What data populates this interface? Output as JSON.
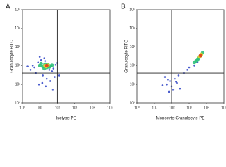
{
  "chart_data": [
    {
      "type": "scatter",
      "panel_label": "A",
      "xlabel": "Isotype PE",
      "ylabel": "Granulocyte FITC",
      "log": true,
      "xlim": [
        1,
        100000
      ],
      "ylim": [
        1,
        100000
      ],
      "xticks": [
        {
          "value": 1,
          "label": "10⁰"
        },
        {
          "value": 10,
          "label": "10¹"
        },
        {
          "value": 100,
          "label": "10²"
        },
        {
          "value": 1000,
          "label": "10³"
        },
        {
          "value": 10000,
          "label": "10⁴"
        },
        {
          "value": 100000,
          "label": "10⁵"
        }
      ],
      "yticks": [
        {
          "value": 1,
          "label": "10⁰"
        },
        {
          "value": 10,
          "label": "10¹"
        },
        {
          "value": 100,
          "label": "10²"
        },
        {
          "value": 1000,
          "label": "10³"
        },
        {
          "value": 10000,
          "label": "10⁴"
        },
        {
          "value": 100000,
          "label": "10⁵"
        }
      ],
      "quadrant": {
        "x": 100,
        "y": 40
      },
      "series": [
        {
          "color": "#2a3fc4",
          "x": [
            3,
            5,
            8,
            12,
            20,
            30,
            45,
            60,
            80,
            100,
            6,
            15,
            25,
            40,
            70,
            4,
            10,
            18,
            35,
            50,
            9,
            22,
            55,
            130,
            2,
            14
          ],
          "values": [
            60,
            80,
            150,
            200,
            180,
            120,
            90,
            70,
            110,
            140,
            40,
            30,
            20,
            15,
            25,
            100,
            300,
            250,
            60,
            50,
            10,
            8,
            5,
            30,
            90,
            12
          ]
        },
        {
          "color": "#2fc07a",
          "x": [
            10,
            15,
            20,
            25,
            30,
            40,
            12,
            18,
            35,
            50
          ],
          "values": [
            100,
            90,
            120,
            80,
            110,
            95,
            130,
            70,
            85,
            105
          ]
        },
        {
          "color": "#e6d22a",
          "x": [
            20,
            25,
            30,
            22
          ],
          "values": [
            100,
            95,
            105,
            90
          ]
        },
        {
          "color": "#e03a20",
          "x": [
            25
          ],
          "values": [
            100
          ]
        }
      ]
    },
    {
      "type": "scatter",
      "panel_label": "B",
      "xlabel": "Monocyte Granulocyte PE",
      "ylabel": "Granulocyte FITC",
      "log": true,
      "xlim": [
        1,
        100000
      ],
      "ylim": [
        1,
        100000
      ],
      "xticks": [
        {
          "value": 1,
          "label": "10⁰"
        },
        {
          "value": 10,
          "label": "10¹"
        },
        {
          "value": 100,
          "label": "10²"
        },
        {
          "value": 1000,
          "label": "10³"
        },
        {
          "value": 10000,
          "label": "10⁴"
        },
        {
          "value": 100000,
          "label": "10⁵"
        }
      ],
      "yticks": [
        {
          "value": 1,
          "label": "10⁰"
        },
        {
          "value": 10,
          "label": "10¹"
        },
        {
          "value": 100,
          "label": "10²"
        },
        {
          "value": 1000,
          "label": "10³"
        },
        {
          "value": 10000,
          "label": "10⁴"
        },
        {
          "value": 100000,
          "label": "10⁵"
        }
      ],
      "quadrant": {
        "x": 100,
        "y": 40
      },
      "series": [
        {
          "color": "#2a3fc4",
          "x": [
            50,
            80,
            100,
            150,
            200,
            300,
            40,
            120,
            250,
            60,
            500,
            800,
            1000,
            2000,
            3000,
            30,
            70,
            180
          ],
          "values": [
            10,
            15,
            8,
            20,
            12,
            6,
            25,
            5,
            30,
            18,
            40,
            60,
            80,
            100,
            150,
            9,
            4,
            14
          ]
        },
        {
          "color": "#2fc07a",
          "x": [
            2000,
            3000,
            4000,
            5000,
            6000,
            3500,
            4500,
            2500
          ],
          "values": [
            150,
            200,
            300,
            400,
            500,
            250,
            350,
            180
          ]
        },
        {
          "color": "#e6d22a",
          "x": [
            4000,
            5000,
            4500
          ],
          "values": [
            300,
            400,
            350
          ]
        },
        {
          "color": "#e03a20",
          "x": [
            4500
          ],
          "values": [
            350
          ]
        }
      ]
    }
  ]
}
